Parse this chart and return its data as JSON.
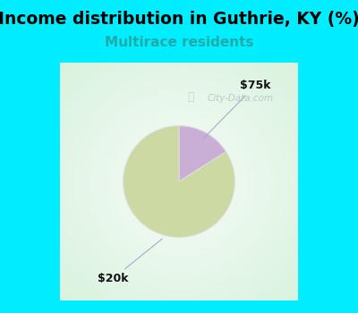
{
  "title": "Income distribution in Guthrie, KY (%)",
  "subtitle": "Multirace residents",
  "slices": [
    {
      "label": "$75k",
      "value": 16,
      "color": "#c9aed6"
    },
    {
      "label": "$20k",
      "value": 84,
      "color": "#cdd9a3"
    }
  ],
  "start_angle": 90,
  "outer_bg": "#00eeff",
  "panel_bg": "#e8f5ee",
  "title_fontsize": 13.5,
  "subtitle_fontsize": 11,
  "subtitle_color": "#22aaaa",
  "watermark_text": "City-Data.com",
  "watermark_color": "#b0c8c8",
  "annotation_color": "#aaaacc",
  "label_color": "#111111",
  "label_fontsize": 9
}
